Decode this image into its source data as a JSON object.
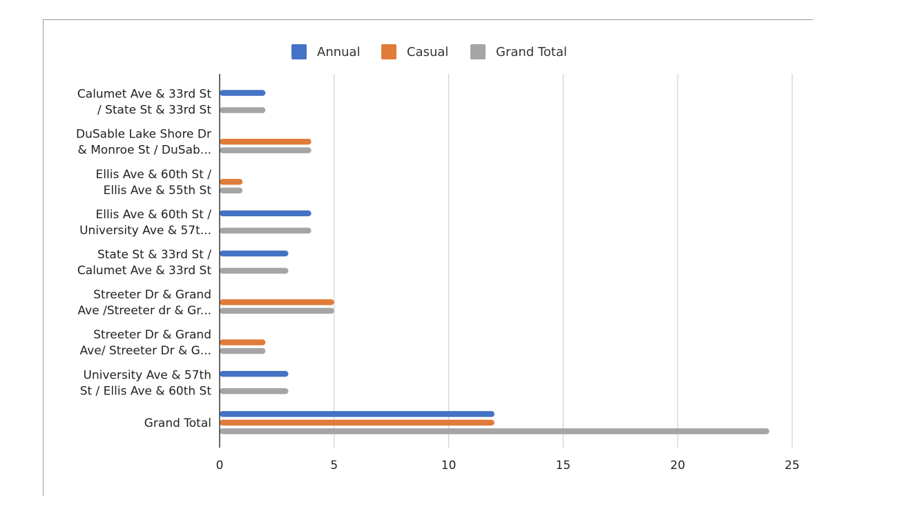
{
  "chart_data": {
    "type": "bar",
    "orientation": "horizontal",
    "title": "",
    "xlabel": "",
    "ylabel": "",
    "categories": [
      [
        "Calumet Ave & 33rd St",
        "/ State St & 33rd St"
      ],
      [
        "DuSable Lake Shore Dr",
        "& Monroe St / DuSab..."
      ],
      [
        "Ellis Ave & 60th St /",
        "Ellis Ave & 55th St"
      ],
      [
        "Ellis Ave & 60th St /",
        "University Ave & 57t..."
      ],
      [
        "State St & 33rd St /",
        "Calumet Ave & 33rd St"
      ],
      [
        "Streeter Dr & Grand",
        "Ave /Streeter dr & Gr..."
      ],
      [
        "Streeter Dr & Grand",
        "Ave/ Streeter Dr & G..."
      ],
      [
        "University Ave & 57th",
        "St / Ellis Ave & 60th St"
      ],
      [
        "Grand Total"
      ]
    ],
    "series": [
      {
        "name": "Annual",
        "color": "#4472c4",
        "values": [
          2,
          null,
          null,
          4,
          3,
          null,
          null,
          3,
          12
        ]
      },
      {
        "name": "Casual",
        "color": "#e07b39",
        "values": [
          null,
          4,
          1,
          null,
          null,
          5,
          2,
          null,
          12
        ]
      },
      {
        "name": "Grand Total",
        "color": "#a5a5a5",
        "values": [
          2,
          4,
          1,
          4,
          3,
          5,
          2,
          3,
          24
        ]
      }
    ],
    "xlim": [
      0,
      25
    ],
    "xticks": [
      "0",
      "5",
      "10",
      "15",
      "20",
      "25"
    ],
    "grid": true,
    "legend_position": "top"
  }
}
